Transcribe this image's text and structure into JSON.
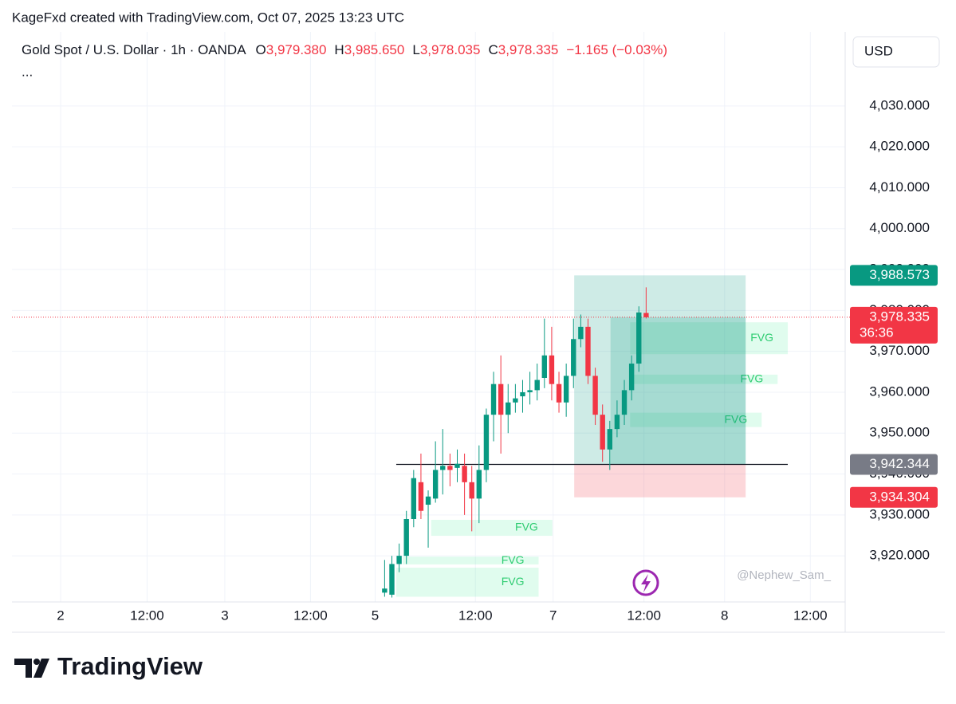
{
  "chart_data": {
    "type": "candlestick",
    "title": "KageFxd created with TradingView.com, Oct 07, 2025 13:23 UTC",
    "symbol": "Gold Spot / U.S. Dollar · 1h · OANDA",
    "ohlc_legend": {
      "keys": [
        "O",
        "H",
        "L",
        "C"
      ],
      "values": [
        3979.38,
        3985.65,
        3978.035,
        3978.335
      ],
      "value_labels": [
        "3,979.380",
        "3,985.650",
        "3,978.035",
        "3,978.335"
      ]
    },
    "change": "−1.165 (−0.03%)",
    "more": "...",
    "currency": "USD",
    "watermark": "@Nephew_Sam_",
    "branding": "TradingView",
    "up_color": "#089981",
    "down_color": "#f23645",
    "grid": true,
    "xlim": [
      -51.3,
      63.4
    ],
    "ylim": [
      3909.7,
      4048.1
    ],
    "xticks": [
      {
        "value": -44.6,
        "label": "2"
      },
      {
        "value": -32.7,
        "label": "12:00"
      },
      {
        "value": -22.0,
        "label": "3"
      },
      {
        "value": -10.2,
        "label": "12:00"
      },
      {
        "value": -1.3,
        "label": "5"
      },
      {
        "value": 12.5,
        "label": "12:00"
      },
      {
        "value": 23.2,
        "label": "7"
      },
      {
        "value": 35.7,
        "label": "12:00"
      },
      {
        "value": 46.8,
        "label": "8"
      },
      {
        "value": 58.6,
        "label": "12:00"
      }
    ],
    "yticks": [
      {
        "value": 3920,
        "label": "3,920.000"
      },
      {
        "value": 3930,
        "label": "3,930.000"
      },
      {
        "value": 3940,
        "label": "3,940.000"
      },
      {
        "value": 3950,
        "label": "3,950.000"
      },
      {
        "value": 3960,
        "label": "3,960.000"
      },
      {
        "value": 3970,
        "label": "3,970.000"
      },
      {
        "value": 3980,
        "label": "3,980.000"
      },
      {
        "value": 3990,
        "label": "3,990.000"
      },
      {
        "value": 4000,
        "label": "4,000.000"
      },
      {
        "value": 4010,
        "label": "4,010.000"
      },
      {
        "value": 4020,
        "label": "4,020.000"
      },
      {
        "value": 4030,
        "label": "4,030.000"
      }
    ],
    "x": [
      0,
      1,
      2,
      3,
      4,
      5,
      6,
      7,
      8,
      9,
      10,
      11,
      12,
      13,
      14,
      15,
      16,
      17,
      18,
      19,
      20,
      21,
      22,
      23,
      24,
      25,
      26,
      27,
      28,
      29,
      30,
      31,
      32,
      33,
      34,
      35,
      36
    ],
    "open": [
      3911,
      3910.5,
      3918,
      3920,
      3929,
      3938,
      3932.5,
      3934,
      3941,
      3942,
      3941.5,
      3942,
      3938,
      3934,
      3941,
      3954.5,
      3962,
      3954.5,
      3957.5,
      3959,
      3960,
      3960.5,
      3963.5,
      3969,
      3962,
      3957.5,
      3964,
      3973,
      3976,
      3964,
      3954.5,
      3946,
      3951,
      3954.5,
      3960.5,
      3967,
      3979.38
    ],
    "high": [
      3919,
      3920,
      3923,
      3931,
      3941,
      3945,
      3936,
      3948,
      3951,
      3945,
      3946,
      3945,
      3942,
      3947,
      3956,
      3965,
      3969,
      3962,
      3962,
      3963,
      3965,
      3967,
      3978,
      3976,
      3965,
      3967,
      3978,
      3979,
      3978,
      3966,
      3957,
      3953,
      3958,
      3963,
      3969,
      3981,
      3985.65
    ],
    "low": [
      3910,
      3909.8,
      3916,
      3918,
      3927,
      3929,
      3922,
      3933,
      3935,
      3937,
      3938,
      3930,
      3926,
      3928,
      3938,
      3948,
      3945,
      3950,
      3955,
      3955,
      3957,
      3958,
      3961,
      3958,
      3955,
      3954,
      3961,
      3971,
      3962,
      3952,
      3943,
      3941,
      3949,
      3952,
      3958,
      3965,
      3978.035
    ],
    "close": [
      3912,
      3918,
      3920,
      3929,
      3939,
      3931,
      3934.5,
      3941,
      3942,
      3941,
      3942.5,
      3938,
      3934,
      3941,
      3954.5,
      3962,
      3954.5,
      3957.5,
      3958.5,
      3960,
      3960.5,
      3963,
      3969,
      3962,
      3957.5,
      3964,
      3973,
      3976,
      3964,
      3954.5,
      3946,
      3951,
      3954.5,
      3960.5,
      3967,
      3979.5,
      3978.335
    ],
    "hline": {
      "value": 3942.344,
      "x": [
        1.6,
        55.5
      ]
    },
    "position": {
      "x": [
        26.1,
        49.7
      ],
      "entry_x": 31.1,
      "target": 3988.573,
      "entry": 3942.344,
      "stop": 3934.304,
      "current": 3978.335
    },
    "fvgs": [
      {
        "label": "FVG",
        "x": [
          6.4,
          23.1
        ],
        "top": 3928.8,
        "bottom": 3924.9
      },
      {
        "label": "FVG",
        "x": [
          2.5,
          21.2
        ],
        "top": 3919.8,
        "bottom": 3917.9
      },
      {
        "label": "FVG",
        "x": [
          1.6,
          21.2
        ],
        "top": 3917.1,
        "bottom": 3910.0
      },
      {
        "label": "FVG",
        "x": [
          33.8,
          55.5
        ],
        "top": 3977.1,
        "bottom": 3969.3
      },
      {
        "label": "FVG",
        "x": [
          33.8,
          54.1
        ],
        "top": 3964.3,
        "bottom": 3962.0
      },
      {
        "label": "FVG",
        "x": [
          33.8,
          51.9
        ],
        "top": 3955.0,
        "bottom": 3951.5
      }
    ],
    "price_tags": [
      {
        "value": 3988.573,
        "label": "3,988.573",
        "color": "#089981"
      },
      {
        "value": 3978.335,
        "label": "3,978.335",
        "color": "#f23645",
        "countdown": "36:36"
      },
      {
        "value": 3942.344,
        "label": "3,942.344",
        "color": "#787b86"
      },
      {
        "value": 3934.304,
        "label": "3,934.304",
        "color": "#f23645"
      }
    ]
  }
}
